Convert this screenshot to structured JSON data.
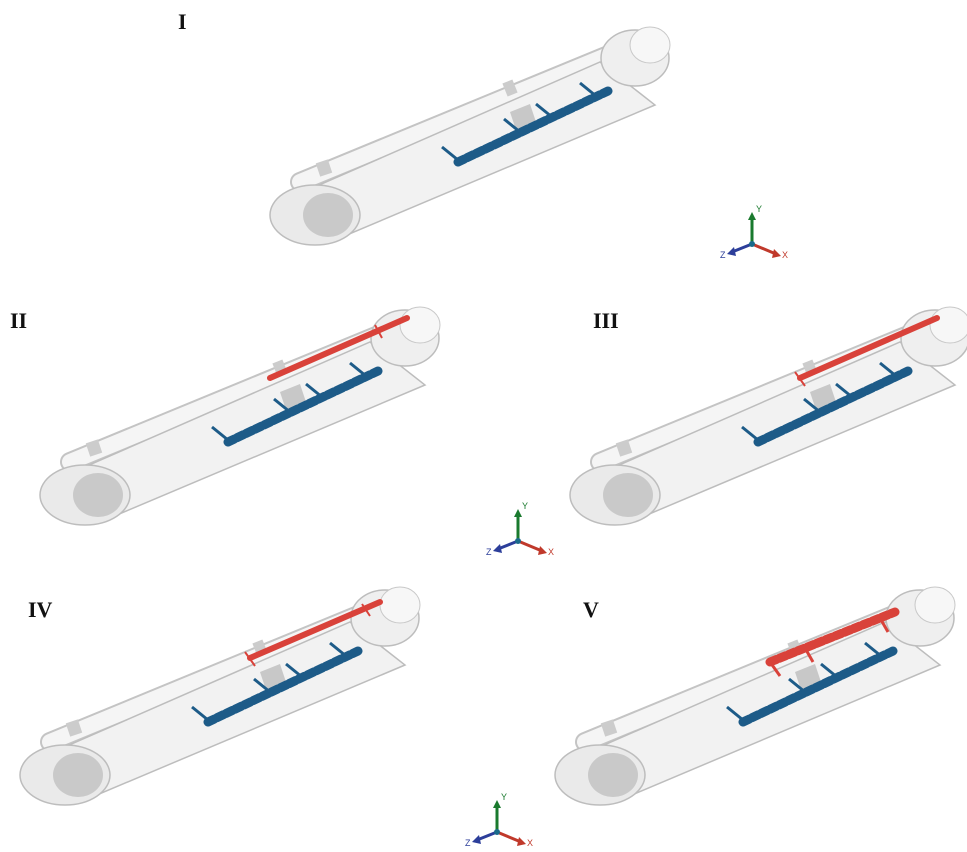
{
  "panels": [
    {
      "label": "I"
    },
    {
      "label": "II"
    },
    {
      "label": "III"
    },
    {
      "label": "IV"
    },
    {
      "label": "V"
    }
  ],
  "axes": [
    {
      "y": "Y",
      "x": "X",
      "z": "Z"
    },
    {
      "y": "Y",
      "x": "X",
      "z": "Z"
    },
    {
      "y": "Y",
      "x": "X",
      "z": "Z"
    }
  ]
}
